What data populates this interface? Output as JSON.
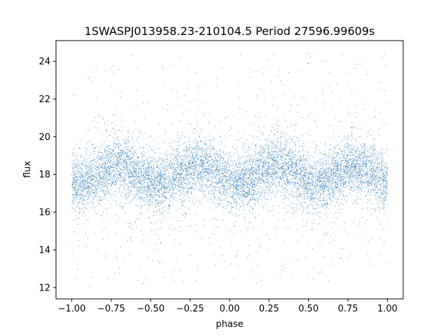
{
  "chart_data": {
    "type": "scatter",
    "title": "1SWASPJ013958.23-210104.5 Period 27596.99609s",
    "xlabel": "phase",
    "ylabel": "flux",
    "xlim": [
      -1.1,
      1.1
    ],
    "ylim": [
      11.4,
      25.1
    ],
    "xticks": [
      -1.0,
      -0.75,
      -0.5,
      -0.25,
      0.0,
      0.25,
      0.5,
      0.75,
      1.0
    ],
    "xtick_labels": [
      "−1.00",
      "−0.75",
      "−0.50",
      "−0.25",
      "0.00",
      "0.25",
      "0.50",
      "0.75",
      "1.00"
    ],
    "yticks": [
      12,
      14,
      16,
      18,
      20,
      22,
      24
    ],
    "ytick_labels": [
      "12",
      "14",
      "16",
      "18",
      "20",
      "22",
      "24"
    ],
    "x_range": [
      -1.0,
      1.0
    ],
    "y_range": [
      12.0,
      24.5
    ],
    "mean_flux": 18.0,
    "modulation_amplitude": 0.5,
    "modulation_peaks_phase": [
      -0.7,
      -0.2,
      0.3,
      0.8
    ],
    "modulation_troughs_phase": [
      -0.95,
      -0.45,
      0.05,
      0.55
    ],
    "point_color": "#1f77b4",
    "grid": false,
    "legend": "none"
  }
}
